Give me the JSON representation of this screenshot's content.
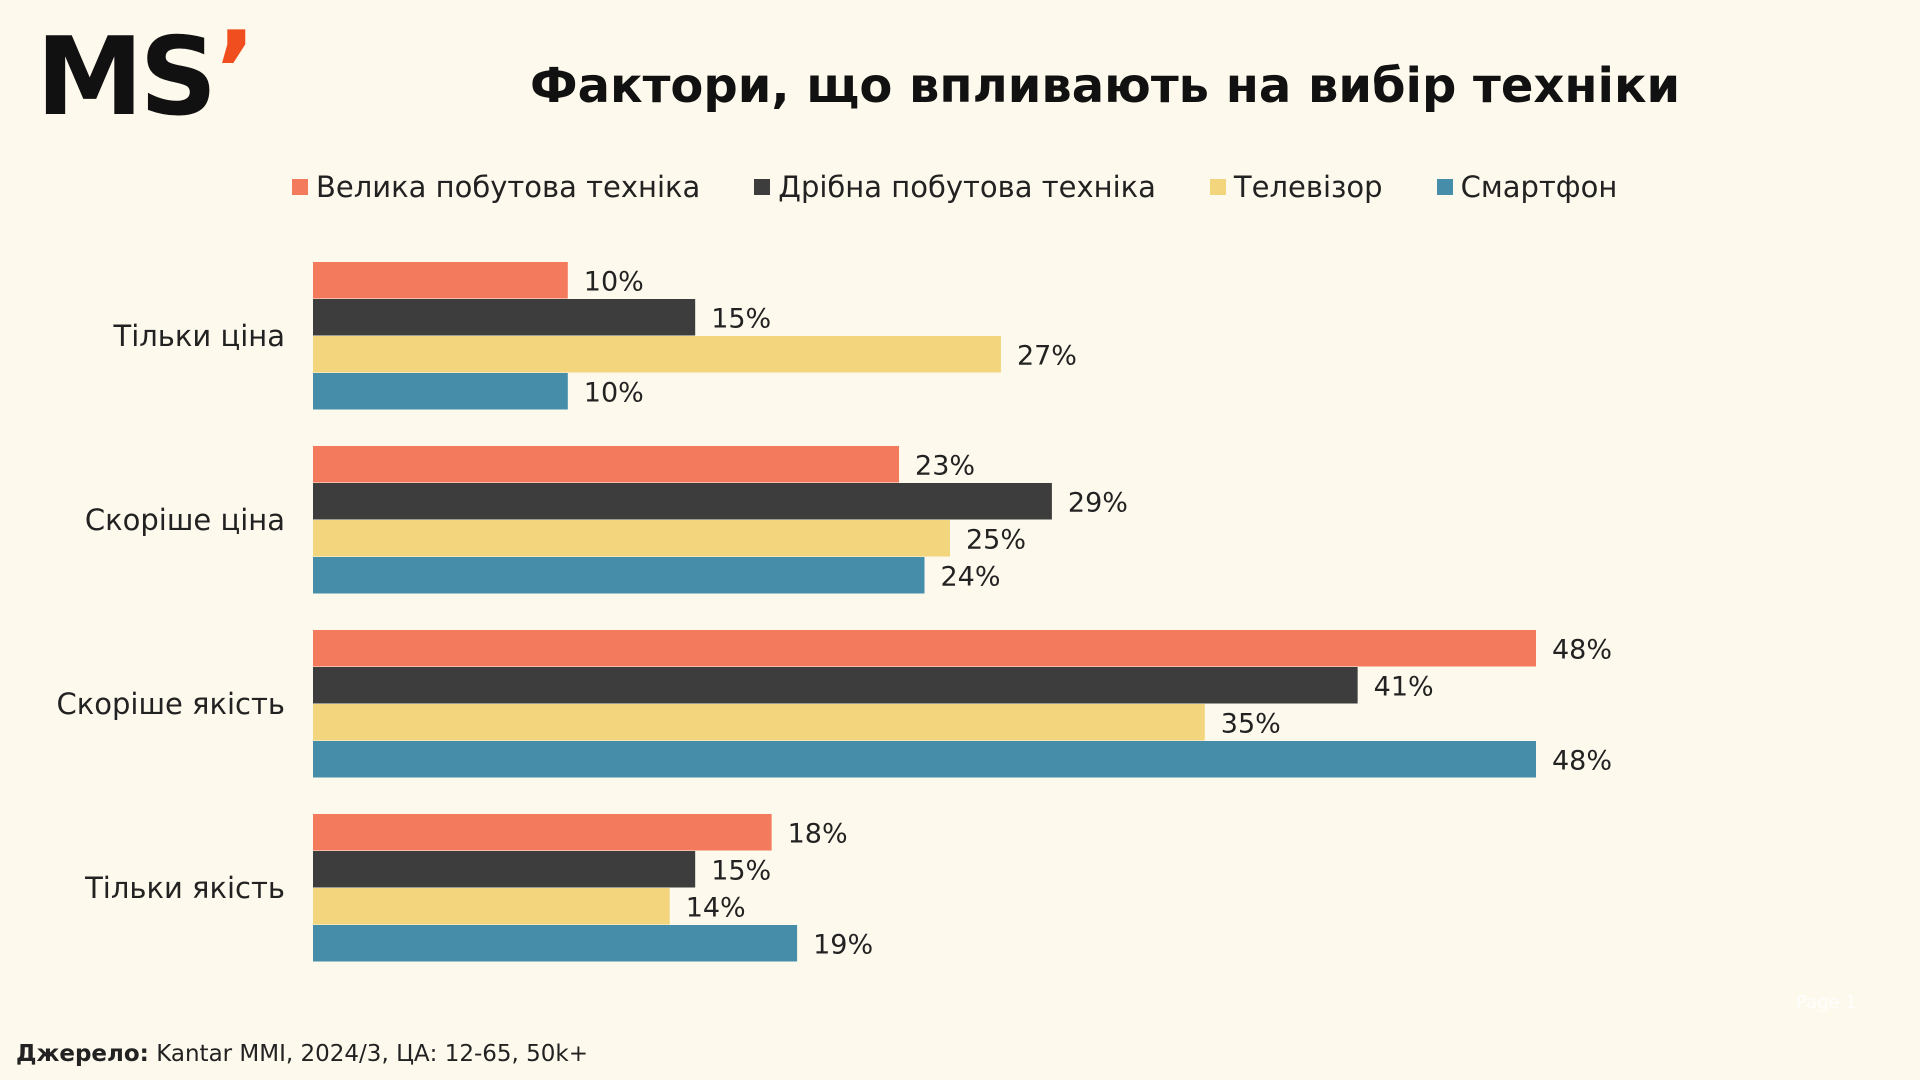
{
  "logo": {
    "text": "MS",
    "tick": "’"
  },
  "title": "Фактори, що впливають на вибір техніки",
  "source": {
    "label": "Джерело:",
    "text": "Kantar MMI, 2024/3, ЦА: 12-65, 50k+"
  },
  "page_mark": "Page 1",
  "colors": {
    "background": "#fdf9ec",
    "series": [
      "#f47a5d",
      "#3d3d3d",
      "#f2d57d",
      "#458da8"
    ],
    "logo_accent": "#f04e1e"
  },
  "chart_data": {
    "type": "bar",
    "orientation": "horizontal",
    "categories": [
      "Тільки ціна",
      "Скоріше ціна",
      "Скоріше якість",
      "Тільки якість"
    ],
    "series": [
      {
        "name": "Велика побутова техніка",
        "values": [
          10,
          23,
          48,
          18
        ]
      },
      {
        "name": "Дрібна побутова техніка",
        "values": [
          15,
          29,
          41,
          15
        ]
      },
      {
        "name": "Телевізор",
        "values": [
          27,
          25,
          35,
          14
        ]
      },
      {
        "name": "Смартфон",
        "values": [
          10,
          24,
          48,
          19
        ]
      }
    ],
    "value_suffix": "%",
    "legend": "top",
    "grid": false,
    "xlim": [
      0,
      48
    ]
  }
}
